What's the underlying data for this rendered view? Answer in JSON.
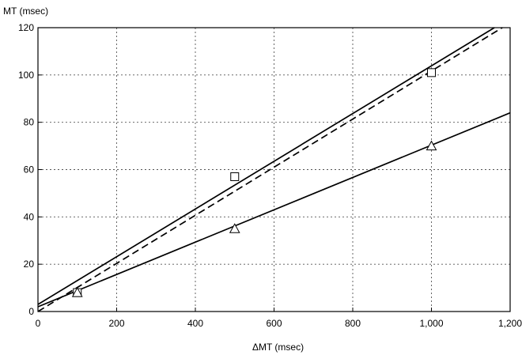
{
  "chart_data": {
    "type": "line",
    "title": "",
    "xlabel": "ΔMT (msec)",
    "ylabel": "MT (msec)",
    "xlim": [
      0,
      1200
    ],
    "ylim": [
      0,
      120
    ],
    "x_ticks": [
      0,
      200,
      400,
      600,
      800,
      1000,
      1200
    ],
    "x_tick_labels": [
      "0",
      "200",
      "400",
      "600",
      "800",
      "1,000",
      "1,200"
    ],
    "y_ticks": [
      0,
      20,
      40,
      60,
      80,
      100,
      120
    ],
    "y_tick_labels": [
      "0",
      "20",
      "40",
      "60",
      "80",
      "100",
      "120"
    ],
    "grid": true,
    "legend": "none",
    "series": [
      {
        "style": "solid",
        "x": [
          0,
          1160
        ],
        "y": [
          3,
          120
        ]
      },
      {
        "style": "dashed",
        "x": [
          0,
          1180
        ],
        "y": [
          0,
          120
        ]
      },
      {
        "style": "solid",
        "x": [
          0,
          1200
        ],
        "y": [
          2,
          84
        ]
      }
    ],
    "markers": [
      {
        "shape": "square",
        "x": [
          100,
          500,
          1000
        ],
        "y": [
          8,
          57,
          101
        ]
      },
      {
        "shape": "triangle",
        "x": [
          100,
          500,
          1000
        ],
        "y": [
          8,
          35,
          70
        ]
      }
    ]
  }
}
